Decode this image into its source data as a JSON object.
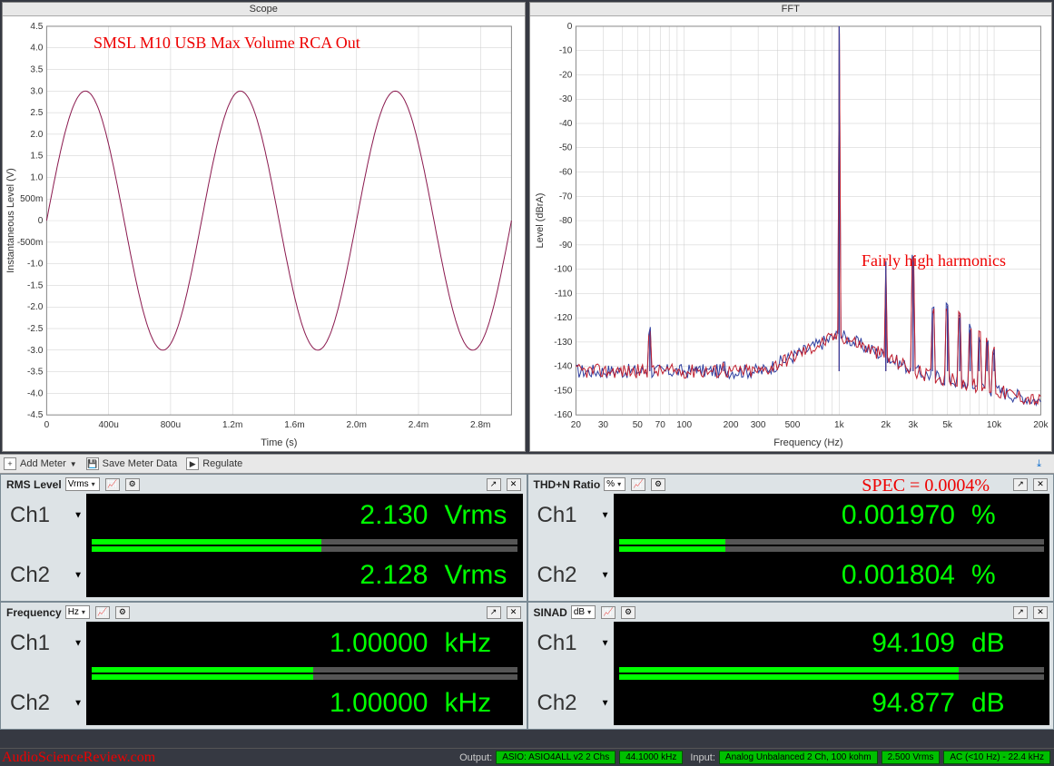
{
  "scope_chart": {
    "title": "Scope",
    "type": "line",
    "xlabel": "Time (s)",
    "ylabel": "Instantaneous Level (V)",
    "annotation": "SMSL M10 USB Max Volume RCA Out",
    "annotation_color": "#e00000",
    "xlim": [
      0,
      0.003
    ],
    "ylim": [
      -4.5,
      4.5
    ],
    "xticks": [
      "0",
      "400u",
      "800u",
      "1.2m",
      "1.6m",
      "2.0m",
      "2.4m",
      "2.8m"
    ],
    "yticks": [
      "-4.5",
      "-4.0",
      "-3.5",
      "-3.0",
      "-2.5",
      "-2.0",
      "-1.5",
      "-1.0",
      "-500m",
      "0",
      "500m",
      "1.0",
      "1.5",
      "2.0",
      "2.5",
      "3.0",
      "3.5",
      "4.0",
      "4.5"
    ],
    "line_color": "#8b1a4f",
    "grid_color": "#d0d0d0",
    "background_color": "#ffffff",
    "amplitude": 3.0,
    "frequency_hz": 1000
  },
  "fft_chart": {
    "title": "FFT",
    "type": "line",
    "xlabel": "Frequency (Hz)",
    "ylabel": "Level (dBrA)",
    "annotation": "Fairly high harmonics",
    "annotation_color": "#e00000",
    "xscale": "log",
    "xlim": [
      20,
      20000
    ],
    "ylim": [
      -160,
      0
    ],
    "xticks": [
      "20",
      "30",
      "50",
      "70",
      "100",
      "200",
      "300",
      "500",
      "1k",
      "2k",
      "3k",
      "5k",
      "10k",
      "20k"
    ],
    "xtick_vals": [
      20,
      30,
      50,
      70,
      100,
      200,
      300,
      500,
      1000,
      2000,
      3000,
      5000,
      10000,
      20000
    ],
    "yticks": [
      "-160",
      "-150",
      "-140",
      "-130",
      "-120",
      "-110",
      "-100",
      "-90",
      "-80",
      "-70",
      "-60",
      "-50",
      "-40",
      "-30",
      "-20",
      "-10",
      "0"
    ],
    "line_colors": [
      "#c02030",
      "#3040a0"
    ],
    "grid_color": "#d0d0d0",
    "background_color": "#ffffff",
    "noise_floor_db": -142,
    "fundamental_hz": 1000,
    "fundamental_db": 0,
    "harmonics": [
      {
        "hz": 2000,
        "db": -97
      },
      {
        "hz": 3000,
        "db": -97
      },
      {
        "hz": 4000,
        "db": -118
      },
      {
        "hz": 5000,
        "db": -115
      },
      {
        "hz": 6000,
        "db": -120
      },
      {
        "hz": 7000,
        "db": -125
      },
      {
        "hz": 8000,
        "db": -128
      },
      {
        "hz": 9000,
        "db": -130
      },
      {
        "hz": 10000,
        "db": -133
      },
      {
        "hz": 60,
        "db": -125
      },
      {
        "hz": 120,
        "db": -140
      },
      {
        "hz": 180,
        "db": -140
      }
    ]
  },
  "toolbar": {
    "add_meter": "Add Meter",
    "save_meter": "Save Meter Data",
    "regulate": "Regulate"
  },
  "meters": {
    "rms": {
      "title": "RMS Level",
      "unit_label": "Vrms",
      "ch1": {
        "label": "Ch1",
        "value": "2.130",
        "unit": "Vrms",
        "bar_pct": 54
      },
      "ch2": {
        "label": "Ch2",
        "value": "2.128",
        "unit": "Vrms",
        "bar_pct": 54
      }
    },
    "thdn": {
      "title": "THD+N Ratio",
      "unit_label": "%",
      "spec_annotation": "SPEC = 0.0004%",
      "ch1": {
        "label": "Ch1",
        "value": "0.001970",
        "unit": "%",
        "bar_pct": 25
      },
      "ch2": {
        "label": "Ch2",
        "value": "0.001804",
        "unit": "%",
        "bar_pct": 25
      }
    },
    "freq": {
      "title": "Frequency",
      "unit_label": "Hz",
      "ch1": {
        "label": "Ch1",
        "value": "1.00000",
        "unit": "kHz",
        "bar_pct": 52
      },
      "ch2": {
        "label": "Ch2",
        "value": "1.00000",
        "unit": "kHz",
        "bar_pct": 52
      }
    },
    "sinad": {
      "title": "SINAD",
      "unit_label": "dB",
      "ch1": {
        "label": "Ch1",
        "value": "94.109",
        "unit": "dB",
        "bar_pct": 80
      },
      "ch2": {
        "label": "Ch2",
        "value": "94.877",
        "unit": "dB",
        "bar_pct": 80
      }
    }
  },
  "status": {
    "watermark": "AudioScienceReview.com",
    "output_label": "Output:",
    "output_device": "ASIO: ASIO4ALL v2 2 Chs",
    "output_rate": "44.1000 kHz",
    "input_label": "Input:",
    "input_device": "Analog Unbalanced 2 Ch, 100 kohm",
    "input_range": "2.500 Vrms",
    "input_coupling": "AC (<10 Hz) - 22.4 kHz"
  },
  "colors": {
    "green": "#00ff00",
    "panel_bg": "#dde3e6",
    "dark_bg": "#363942",
    "bar_track": "#555555"
  }
}
